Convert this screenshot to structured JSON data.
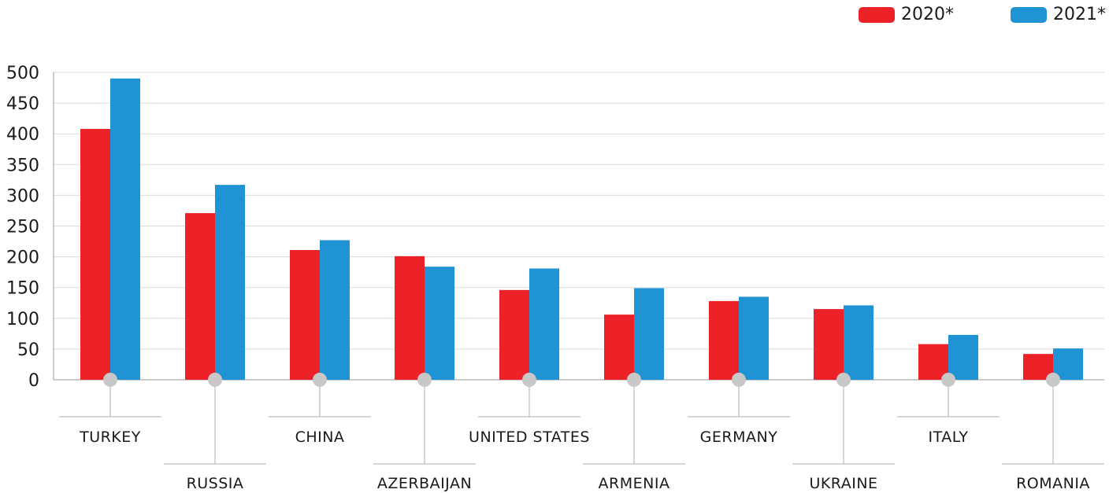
{
  "legend": [
    {
      "label": "2020*",
      "color": "#ed2228"
    },
    {
      "label": "2021*",
      "color": "#1f93d3"
    }
  ],
  "chart_data": {
    "type": "bar",
    "categories": [
      "TURKEY",
      "RUSSIA",
      "CHINA",
      "AZERBAIJAN",
      "UNITED STATES",
      "ARMENIA",
      "GERMANY",
      "UKRAINE",
      "ITALY",
      "ROMANIA"
    ],
    "series": [
      {
        "name": "2020*",
        "color": "#ed2228",
        "values": [
          408,
          271,
          211,
          201,
          146,
          106,
          128,
          115,
          58,
          42
        ]
      },
      {
        "name": "2021*",
        "color": "#1f93d3",
        "values": [
          490,
          317,
          227,
          184,
          181,
          149,
          135,
          121,
          73,
          51
        ]
      }
    ],
    "yticks": [
      "0",
      "50",
      "100",
      "150",
      "200",
      "250",
      "300",
      "350",
      "400",
      "450",
      "500"
    ],
    "ylim": [
      0,
      500
    ],
    "grid": true,
    "legend_position": "top-right"
  }
}
